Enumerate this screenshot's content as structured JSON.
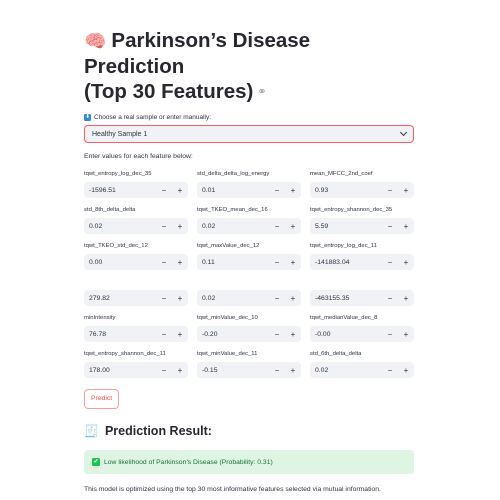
{
  "header": {
    "title_icon": "brain-icon",
    "title_line1": "Parkinson’s Disease Prediction",
    "title_line2": "(Top 30 Features)",
    "link_icon": "link-icon"
  },
  "sample_select": {
    "label": "Choose a real sample or enter manually:",
    "label_icon": "down-arrow-icon",
    "selected": "Healthy Sample 1"
  },
  "instructions": "Enter values for each feature below:",
  "fields": [
    {
      "label": "tqwt_entropy_log_dec_35",
      "value": "-1596.51"
    },
    {
      "label": "std_delta_delta_log_energy",
      "value": "0.01"
    },
    {
      "label": "mean_MFCC_2nd_coef",
      "value": "0.93"
    },
    {
      "label": "std_8th_delta_delta",
      "value": "0.02"
    },
    {
      "label": "tqwt_TKEO_mean_dec_16",
      "value": "0.02"
    },
    {
      "label": "tqwt_entropy_shannon_dec_35",
      "value": "5.59"
    },
    {
      "label": "tqwt_TKEO_std_dec_12",
      "value": "0.00"
    },
    {
      "label": "tqwt_maxValue_dec_12",
      "value": "0.11"
    },
    {
      "label": "tqwt_entropy_log_dec_11",
      "value": "-141883.04"
    },
    {
      "label": "",
      "value": "279.82"
    },
    {
      "label": "",
      "value": "0.02"
    },
    {
      "label": "",
      "value": "-463155.35"
    },
    {
      "label": "minIntensity",
      "value": "76.78"
    },
    {
      "label": "tqwt_minValue_dec_10",
      "value": "-0.20"
    },
    {
      "label": "tqwt_medianValue_dec_8",
      "value": "-0.00"
    },
    {
      "label": "tqwt_entropy_shannon_dec_11",
      "value": "178.00"
    },
    {
      "label": "tqwt_minValue_dec_11",
      "value": "-0.15"
    },
    {
      "label": "std_6th_delta_delta",
      "value": "0.02"
    }
  ],
  "stepper": {
    "minus": "−",
    "plus": "+"
  },
  "predict_button": "Predict",
  "result": {
    "title_icon": "memo-icon",
    "title": "Prediction Result:",
    "message_icon": "check-icon",
    "message": "Low likelihood of Parkinson’s Disease (Probability: 0.31)",
    "status_color": "#21c354"
  },
  "footnote": "This model is optimized using the top 30 most informative features selected via mutual information."
}
